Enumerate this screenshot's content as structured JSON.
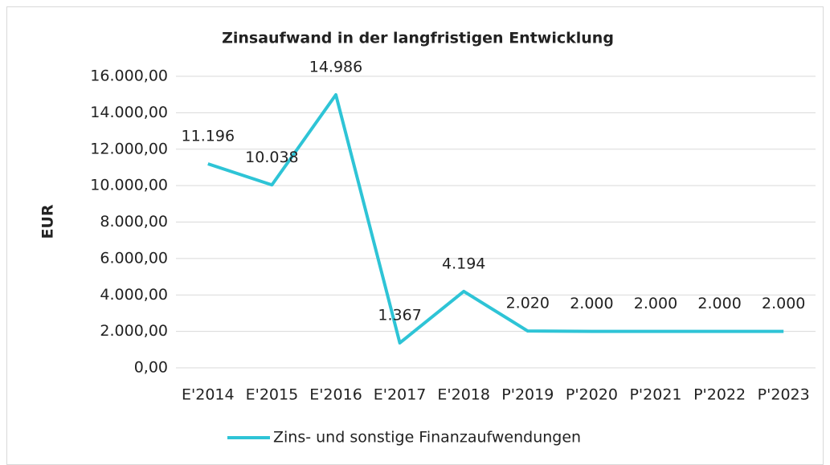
{
  "chart_data": {
    "type": "line",
    "title": "Zinsaufwand in der langfristigen Entwicklung",
    "y_label": "EUR",
    "categories": [
      "E'2014",
      "E'2015",
      "E'2016",
      "E'2017",
      "E'2018",
      "P'2019",
      "P'2020",
      "P'2021",
      "P'2022",
      "P'2023"
    ],
    "series": [
      {
        "name": "Zins- und sonstige Finanzaufwendungen",
        "color": "#2ec4d6",
        "values": [
          11196,
          10038,
          14986,
          1367,
          4194,
          2020,
          2000,
          2000,
          2000,
          2000
        ],
        "value_labels": [
          "11.196",
          "10.038",
          "14.986",
          "1.367",
          "4.194",
          "2.020",
          "2.000",
          "2.000",
          "2.000",
          "2.000"
        ]
      }
    ],
    "ylim": [
      0,
      16000
    ],
    "yticks": [
      {
        "value": 0,
        "label": "0,00"
      },
      {
        "value": 2000,
        "label": "2.000,00"
      },
      {
        "value": 4000,
        "label": "4.000,00"
      },
      {
        "value": 6000,
        "label": "6.000,00"
      },
      {
        "value": 8000,
        "label": "8.000,00"
      },
      {
        "value": 10000,
        "label": "10.000,00"
      },
      {
        "value": 12000,
        "label": "12.000,00"
      },
      {
        "value": 14000,
        "label": "14.000,00"
      },
      {
        "value": 16000,
        "label": "16.000,00"
      }
    ],
    "grid": true,
    "legend": "bottom"
  }
}
